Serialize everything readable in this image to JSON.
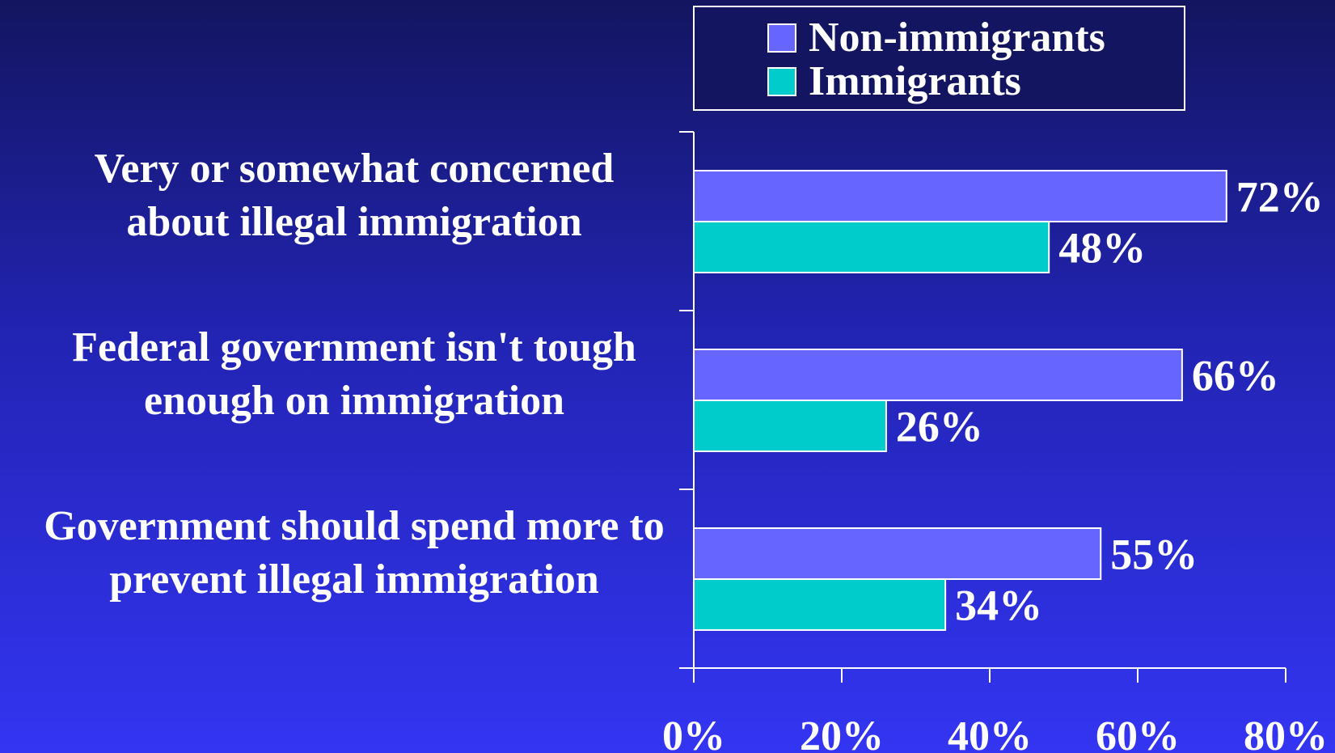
{
  "chart_data": {
    "type": "bar",
    "orientation": "horizontal",
    "categories": [
      [
        "Very or somewhat concerned",
        "about illegal immigration"
      ],
      [
        "Federal government isn't tough",
        "enough on immigration"
      ],
      [
        "Government should spend more to",
        "prevent illegal immigration"
      ]
    ],
    "series": [
      {
        "name": "Non-immigrants",
        "values": [
          72,
          66,
          55
        ],
        "labels": [
          "72%",
          "66%",
          "55%"
        ],
        "color": "#6666ff"
      },
      {
        "name": "Immigrants",
        "values": [
          48,
          26,
          34
        ],
        "labels": [
          "48%",
          "26%",
          "34%"
        ],
        "color": "#00cccc"
      }
    ],
    "xlim": [
      0,
      80
    ],
    "xticks": [
      0,
      20,
      40,
      60,
      80
    ],
    "xtick_labels": [
      "0%",
      "20%",
      "40%",
      "60%",
      "80%"
    ],
    "grid": false,
    "legend_position": "top"
  }
}
